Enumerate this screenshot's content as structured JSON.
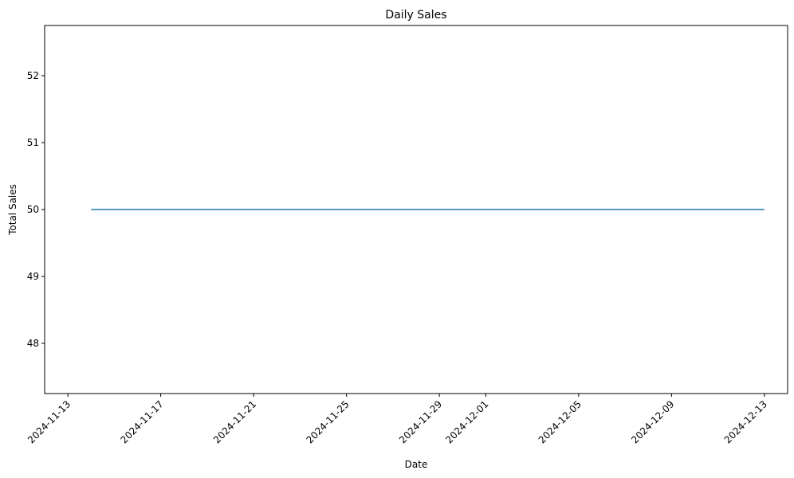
{
  "chart_data": {
    "type": "line",
    "title": "Daily Sales",
    "xlabel": "Date",
    "ylabel": "Total Sales",
    "x_start": "2024-11-14",
    "x_end": "2024-12-13",
    "y_value": 50,
    "xlim": [
      "2024-11-12",
      "2024-12-14"
    ],
    "ylim": [
      47.25,
      52.75
    ],
    "x_ticks": [
      "2024-11-13",
      "2024-11-17",
      "2024-11-21",
      "2024-11-25",
      "2024-11-29",
      "2024-12-01",
      "2024-12-05",
      "2024-12-09",
      "2024-12-13"
    ],
    "y_ticks": [
      48,
      49,
      50,
      51,
      52
    ],
    "line_color": "#1f77b4",
    "grid": false,
    "legend": "none"
  }
}
